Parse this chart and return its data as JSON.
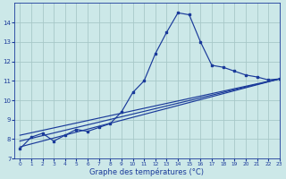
{
  "title": "Graphe des températures (°C)",
  "background_color": "#cce8e8",
  "grid_color": "#a8c8c8",
  "line_color": "#1a3a9a",
  "xlim": [
    -0.5,
    23
  ],
  "ylim": [
    7,
    15
  ],
  "yticks": [
    7,
    8,
    9,
    10,
    11,
    12,
    13,
    14
  ],
  "xticks": [
    0,
    1,
    2,
    3,
    4,
    5,
    6,
    7,
    8,
    9,
    10,
    11,
    12,
    13,
    14,
    15,
    16,
    17,
    18,
    19,
    20,
    21,
    22,
    23
  ],
  "line1_x": [
    0,
    1,
    2,
    3,
    4,
    5,
    6,
    7,
    8,
    9,
    10,
    11,
    12,
    13,
    14,
    15,
    16,
    17,
    18,
    19,
    20,
    21,
    22,
    23
  ],
  "line1_y": [
    7.5,
    8.1,
    8.3,
    7.9,
    8.2,
    8.5,
    8.4,
    8.6,
    8.8,
    9.4,
    10.4,
    11.0,
    12.4,
    13.5,
    14.5,
    14.4,
    13.0,
    11.8,
    11.7,
    11.5,
    11.3,
    11.2,
    11.05,
    11.1
  ],
  "line2_x": [
    0,
    23
  ],
  "line2_y": [
    7.6,
    11.1
  ],
  "line3_x": [
    0,
    23
  ],
  "line3_y": [
    7.9,
    11.1
  ],
  "line4_x": [
    0,
    23
  ],
  "line4_y": [
    8.2,
    11.1
  ]
}
